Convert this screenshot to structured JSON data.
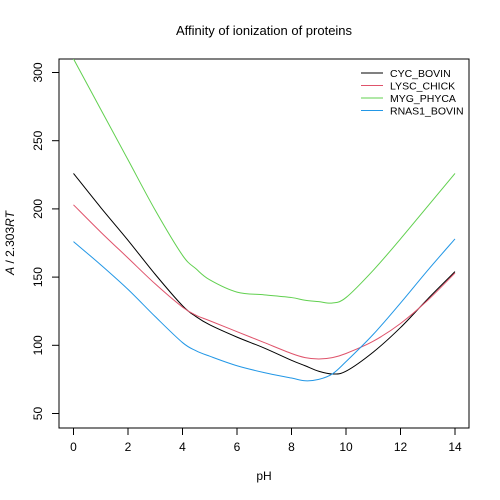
{
  "chart_data": {
    "type": "line",
    "title": "Affinity of ionization of proteins",
    "xlabel": "pH",
    "ylabel_main": "A",
    "ylabel_rest": " / 2.303",
    "ylabel_tail": "RT",
    "xlim": [
      0,
      14
    ],
    "ylim": [
      50,
      300
    ],
    "xticks": [
      0,
      2,
      4,
      6,
      8,
      10,
      12,
      14
    ],
    "yticks": [
      50,
      100,
      150,
      200,
      250,
      300
    ],
    "grid": false,
    "legend_position": "top-right",
    "x": [
      0,
      1,
      2,
      3,
      4,
      4.5,
      5,
      6,
      7,
      8,
      8.5,
      9,
      9.5,
      10,
      11,
      12,
      13,
      14
    ],
    "series": [
      {
        "name": "CYC_BOVIN",
        "color": "#000000",
        "values": [
          226,
          201,
          177,
          152,
          129,
          121,
          115,
          106,
          98,
          89,
          85,
          81,
          79,
          81,
          95,
          113,
          134,
          154
        ]
      },
      {
        "name": "LYSC_CHICK",
        "color": "#DF536B",
        "values": [
          203,
          183,
          164,
          145,
          128,
          122,
          118,
          110,
          102,
          94,
          91,
          90,
          91,
          94,
          103,
          116,
          133,
          153
        ]
      },
      {
        "name": "MYG_PHYCA",
        "color": "#61D04F",
        "values": [
          310,
          273,
          236,
          199,
          166,
          156,
          148,
          139,
          137,
          135,
          133,
          132,
          131,
          135,
          155,
          178,
          202,
          226
        ]
      },
      {
        "name": "RNAS1_BOVIN",
        "color": "#2297E6",
        "values": [
          176,
          159,
          141,
          121,
          102,
          96,
          92,
          85,
          80,
          76,
          74,
          75,
          79,
          88,
          108,
          131,
          155,
          178
        ]
      }
    ]
  }
}
